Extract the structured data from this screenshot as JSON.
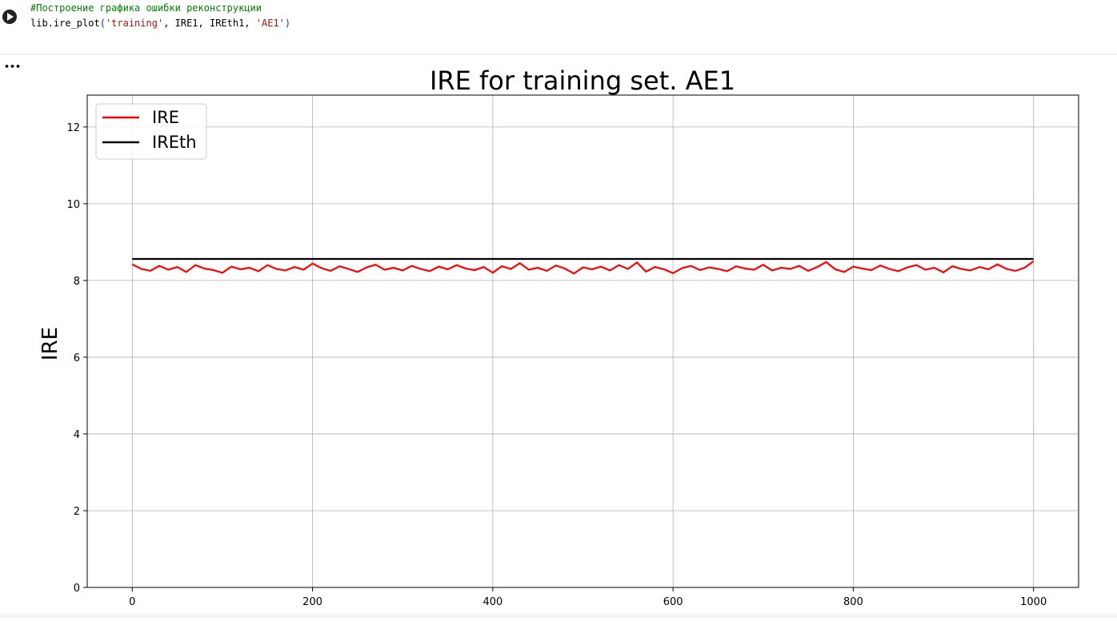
{
  "code": {
    "comment": "#Построение графика ошибки реконструкции",
    "tokens": [
      "lib.ire_plot",
      "(",
      "'training'",
      ", IRE1, IREth1, ",
      "'AE1'",
      ")"
    ]
  },
  "output_menu": "•••",
  "chart_data": {
    "type": "line",
    "title": "IRE for training set. AE1",
    "y_label": "IRE",
    "xlim": [
      -50,
      1050
    ],
    "ylim": [
      0,
      12.83
    ],
    "xticks": [
      0,
      200,
      400,
      600,
      800,
      1000
    ],
    "yticks": [
      0,
      2,
      4,
      6,
      8,
      10,
      12
    ],
    "grid": true,
    "legend": "upper left",
    "series": [
      {
        "name": "IRE",
        "color": "#ff0000",
        "x": [
          0,
          10,
          20,
          30,
          40,
          50,
          60,
          70,
          80,
          90,
          100,
          110,
          120,
          130,
          140,
          150,
          160,
          170,
          180,
          190,
          200,
          210,
          220,
          230,
          240,
          250,
          260,
          270,
          280,
          290,
          300,
          310,
          320,
          330,
          340,
          350,
          360,
          370,
          380,
          390,
          400,
          410,
          420,
          430,
          440,
          450,
          460,
          470,
          480,
          490,
          500,
          510,
          520,
          530,
          540,
          550,
          560,
          570,
          580,
          590,
          600,
          610,
          620,
          630,
          640,
          650,
          660,
          670,
          680,
          690,
          700,
          710,
          720,
          730,
          740,
          750,
          760,
          770,
          780,
          790,
          800,
          810,
          820,
          830,
          840,
          850,
          860,
          870,
          880,
          890,
          900,
          910,
          920,
          930,
          940,
          950,
          960,
          970,
          980,
          990,
          1000
        ],
        "values": [
          8.42,
          8.3,
          8.25,
          8.38,
          8.28,
          8.35,
          8.22,
          8.4,
          8.31,
          8.27,
          8.2,
          8.36,
          8.29,
          8.33,
          8.24,
          8.4,
          8.3,
          8.26,
          8.35,
          8.28,
          8.44,
          8.32,
          8.25,
          8.37,
          8.3,
          8.22,
          8.34,
          8.41,
          8.28,
          8.33,
          8.26,
          8.38,
          8.3,
          8.24,
          8.36,
          8.29,
          8.4,
          8.31,
          8.27,
          8.35,
          8.2,
          8.37,
          8.3,
          8.45,
          8.28,
          8.33,
          8.25,
          8.39,
          8.31,
          8.18,
          8.34,
          8.29,
          8.36,
          8.26,
          8.4,
          8.3,
          8.47,
          8.23,
          8.35,
          8.29,
          8.19,
          8.32,
          8.38,
          8.27,
          8.34,
          8.3,
          8.24,
          8.37,
          8.31,
          8.28,
          8.41,
          8.26,
          8.33,
          8.3,
          8.38,
          8.25,
          8.35,
          8.48,
          8.29,
          8.22,
          8.36,
          8.31,
          8.27,
          8.39,
          8.3,
          8.24,
          8.34,
          8.4,
          8.28,
          8.33,
          8.21,
          8.37,
          8.3,
          8.26,
          8.35,
          8.29,
          8.42,
          8.3,
          8.25,
          8.33,
          8.5
        ]
      },
      {
        "name": "IREth",
        "color": "#000000",
        "x": [
          0,
          1000
        ],
        "values": [
          8.56,
          8.56
        ]
      }
    ]
  }
}
